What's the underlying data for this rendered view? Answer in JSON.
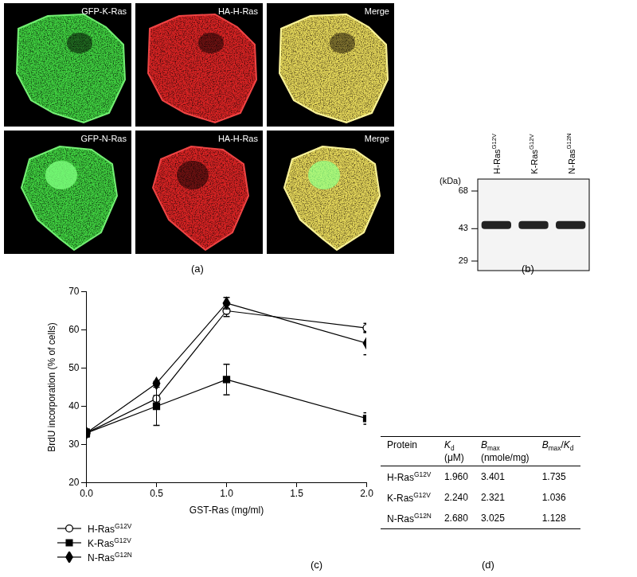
{
  "panel_labels": [
    "(a)",
    "(b)",
    "(c)",
    "(d)"
  ],
  "images": {
    "rows": [
      [
        "GFP-K-Ras",
        "HA-H-Ras",
        "Merge"
      ],
      [
        "GFP-N-Ras",
        "HA-H-Ras",
        "Merge"
      ]
    ]
  },
  "blot": {
    "lanes": [
      "H-RasG12V",
      "K-RasG12V",
      "N-RasG12N"
    ],
    "unit": "(kDa)",
    "markers": [
      {
        "value": 68,
        "label": "68"
      },
      {
        "value": 43,
        "label": "43"
      },
      {
        "value": 29,
        "label": "29"
      }
    ],
    "band_kda": 45
  },
  "chart_data": {
    "type": "line",
    "x_label": "GST-Ras (mg/ml)",
    "y_label": "BrdU incorporation (% of cells)",
    "x": [
      0,
      0.5,
      1.0,
      2.0
    ],
    "series": [
      {
        "name": "H-RasG12V",
        "color": "#000000",
        "marker": "open_circle",
        "values": [
          33,
          42,
          65,
          60.5
        ],
        "errors": [
          1.0,
          0.8,
          1.5,
          1.2
        ]
      },
      {
        "name": "K-RasG12V",
        "color": "#000000",
        "marker": "square",
        "values": [
          33,
          40,
          47,
          36.8
        ],
        "errors": [
          1.0,
          5.0,
          4.0,
          1.5
        ]
      },
      {
        "name": "N-RasG12N",
        "color": "#000000",
        "marker": "diamond",
        "values": [
          33,
          46,
          67,
          56.5
        ],
        "errors": [
          1.0,
          0.5,
          1.5,
          3.0
        ]
      }
    ],
    "xlim": [
      0,
      2.0
    ],
    "xticks": [
      {
        "value": 0,
        "label": "0.0"
      },
      {
        "value": 0.5,
        "label": "0.5"
      },
      {
        "value": 1.0,
        "label": "1.0"
      },
      {
        "value": 1.5,
        "label": "1.5"
      },
      {
        "value": 2.0,
        "label": "2.0"
      }
    ],
    "ylim": [
      20,
      70
    ],
    "yticks": [
      20,
      30,
      40,
      50,
      60,
      70
    ],
    "grid": false,
    "legend": "bottom"
  },
  "table": {
    "header": [
      [
        "Protein"
      ],
      [
        "Kd",
        "(μM)"
      ],
      [
        "Bmax",
        "(nmole/mg)"
      ],
      [
        "Bmax/Kd"
      ]
    ],
    "rows": [
      [
        "H-RasG12V",
        "1.960",
        "3.401",
        "1.735"
      ],
      [
        "K-RasG12V",
        "2.240",
        "2.321",
        "1.036"
      ],
      [
        "N-RasG12N",
        "2.680",
        "3.025",
        "1.128"
      ]
    ]
  }
}
